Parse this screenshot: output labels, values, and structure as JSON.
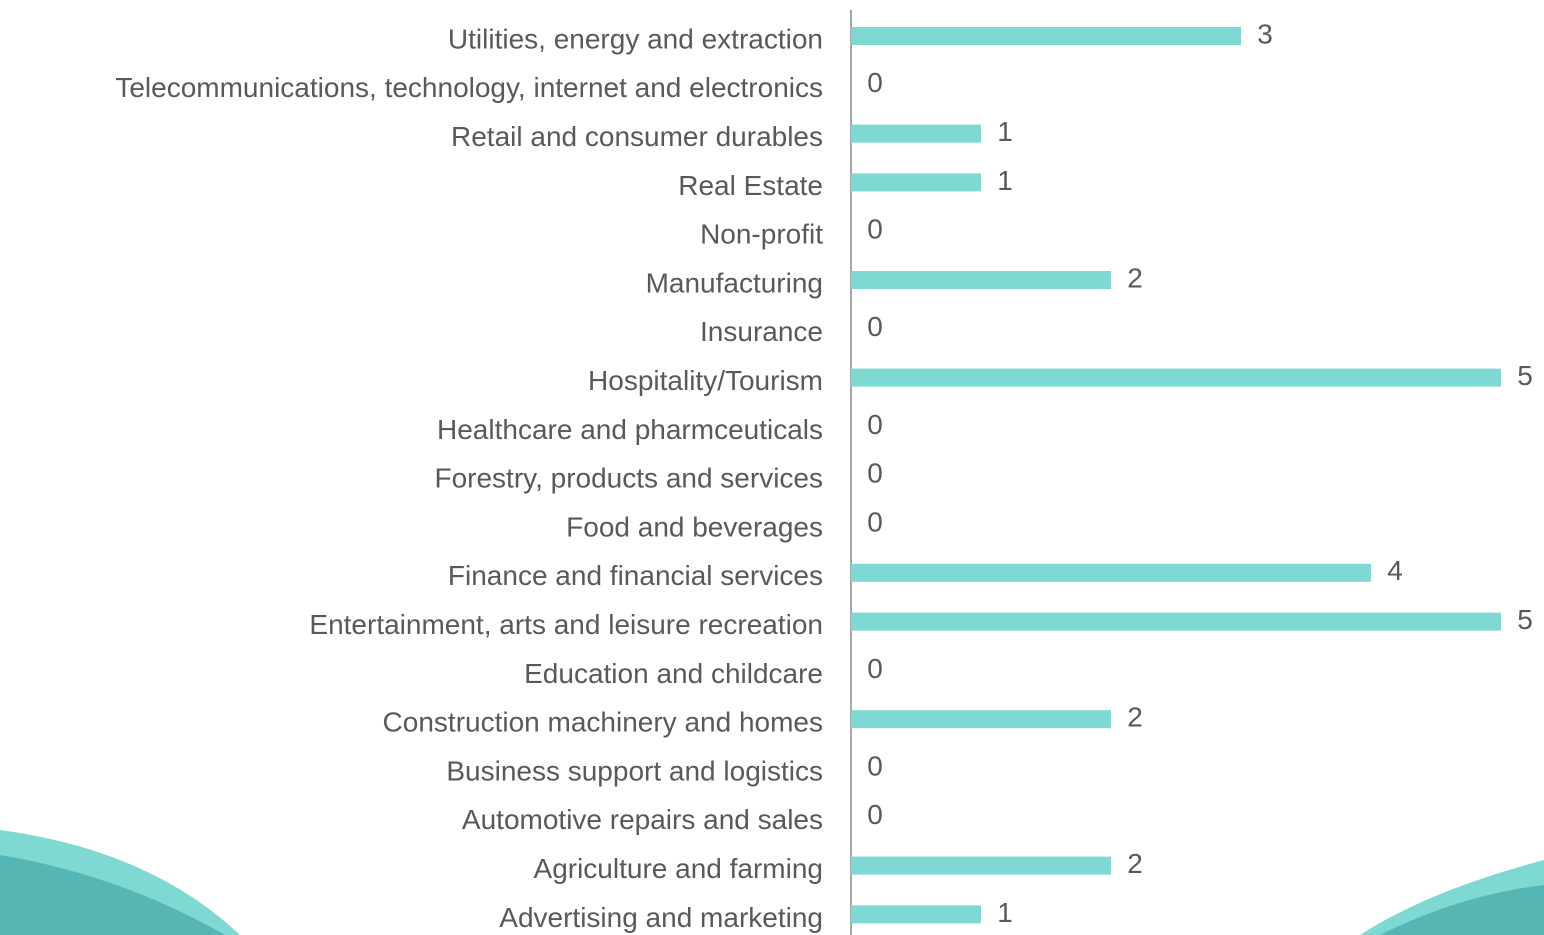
{
  "chart_data": {
    "type": "bar",
    "orientation": "horizontal",
    "categories": [
      "Utilities, energy and extraction",
      "Telecommunications, technology, internet and electronics",
      "Retail and consumer durables",
      "Real Estate",
      "Non-profit",
      "Manufacturing",
      "Insurance",
      "Hospitality/Tourism",
      "Healthcare and pharmceuticals",
      "Forestry, products and services",
      "Food and beverages",
      "Finance and financial services",
      "Entertainment, arts and leisure recreation",
      "Education and childcare",
      "Construction machinery and homes",
      "Business support and logistics",
      "Automotive repairs and sales",
      "Agriculture and farming",
      "Advertising and marketing"
    ],
    "values": [
      3,
      0,
      1,
      1,
      0,
      2,
      0,
      5,
      0,
      0,
      0,
      4,
      5,
      0,
      2,
      0,
      0,
      2,
      1
    ],
    "color": "#7dd9d2"
  }
}
